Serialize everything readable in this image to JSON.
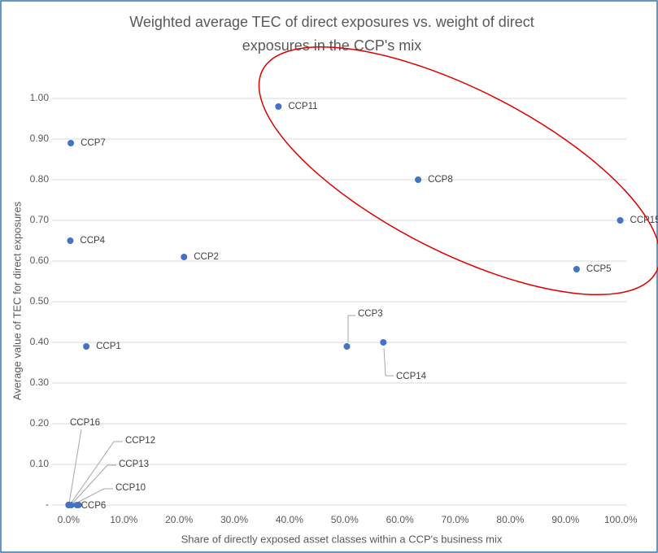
{
  "chart_data": {
    "type": "scatter",
    "title": "Weighted average TEC of direct exposures vs. weight of direct exposures in the CCP's mix",
    "title_lines": [
      "Weighted average TEC of direct exposures vs. weight of direct",
      "exposures in the CCP's mix"
    ],
    "x_label": "Share of directly exposed asset classes within a CCP's business mix",
    "y_label": "Average value of TEC for direct exposures",
    "labels": [
      "CCP11",
      "CCP7",
      "CCP8",
      "CCP15",
      "CCP4",
      "CCP2",
      "CCP5",
      "CCP1",
      "CCP3",
      "CCP14",
      "CCP16",
      "CCP12",
      "CCP13",
      "CCP10",
      "CCP6"
    ],
    "x": [
      38.0,
      0.4,
      63.3,
      99.9,
      0.3,
      20.9,
      92.0,
      3.2,
      50.4,
      57.0,
      0.0,
      0.0,
      0.5,
      1.5,
      1.8
    ],
    "y": [
      0.98,
      0.89,
      0.8,
      0.7,
      0.65,
      0.61,
      0.58,
      0.39,
      0.39,
      0.4,
      0.0,
      0.0,
      0.0,
      0.0,
      0.0
    ],
    "color": "#4472c4",
    "xlim": [
      -3,
      101
    ],
    "ylim": [
      0,
      1.03
    ],
    "xticks": [
      {
        "value": 0,
        "label": "0.0%"
      },
      {
        "value": 10,
        "label": "10.0%"
      },
      {
        "value": 20,
        "label": "20.0%"
      },
      {
        "value": 30,
        "label": "30.0%"
      },
      {
        "value": 40,
        "label": "40.0%"
      },
      {
        "value": 50,
        "label": "50.0%"
      },
      {
        "value": 60,
        "label": "60.0%"
      },
      {
        "value": 70,
        "label": "70.0%"
      },
      {
        "value": 80,
        "label": "80.0%"
      },
      {
        "value": 90,
        "label": "90.0%"
      },
      {
        "value": 100,
        "label": "100.0%"
      }
    ],
    "yticks": [
      {
        "value": 0,
        "label": "-"
      },
      {
        "value": 0.1,
        "label": "0.10"
      },
      {
        "value": 0.2,
        "label": "0.20"
      },
      {
        "value": 0.3,
        "label": "0.30"
      },
      {
        "value": 0.4,
        "label": "0.40"
      },
      {
        "value": 0.5,
        "label": "0.50"
      },
      {
        "value": 0.6,
        "label": "0.60"
      },
      {
        "value": 0.7,
        "label": "0.70"
      },
      {
        "value": 0.8,
        "label": "0.80"
      },
      {
        "value": 0.9,
        "label": "0.90"
      },
      {
        "value": 1,
        "label": "1.00"
      }
    ],
    "grid": true
  }
}
